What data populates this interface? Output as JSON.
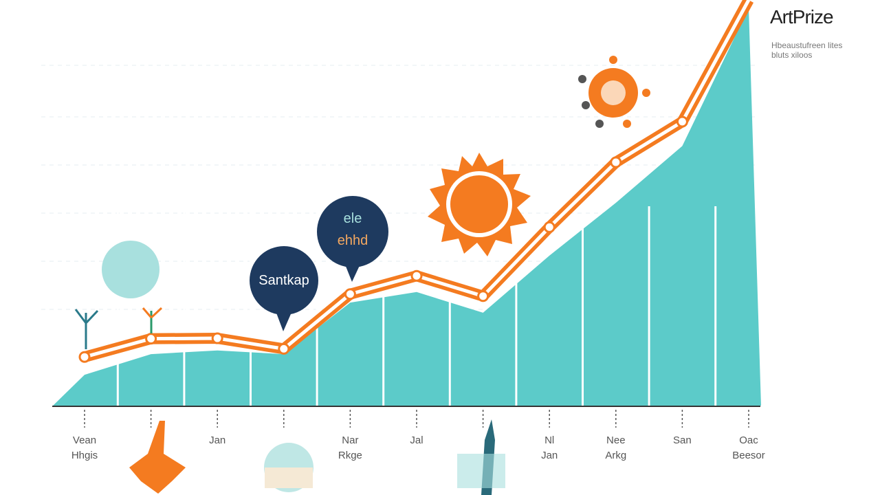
{
  "chart_data": {
    "type": "line-area",
    "title": "ArtPrize",
    "subtitle": [
      "Hbeaustufreen lites",
      "bluts xiloos"
    ],
    "annotations": [
      "Santkap",
      "ele",
      "ehhd"
    ],
    "categories": [
      "Vean\nHhgis",
      null,
      "Jan",
      null,
      "Nar\nRkge",
      "Jal",
      null,
      "Nl\nJan",
      "Nee\nArkg",
      "San",
      "Oac\nBeesor"
    ],
    "ylim": [
      0,
      100
    ],
    "series": [
      {
        "color": "#5ccbc9",
        "values": [
          7.6,
          12.7,
          13.6,
          12.7,
          25.4,
          28,
          22.9,
          37,
          50,
          64,
          98
        ]
      },
      {
        "color": "#f47b20",
        "values": [
          12,
          16.5,
          16.6,
          14,
          27.5,
          32,
          27,
          44,
          60,
          70,
          100
        ]
      }
    ]
  }
}
